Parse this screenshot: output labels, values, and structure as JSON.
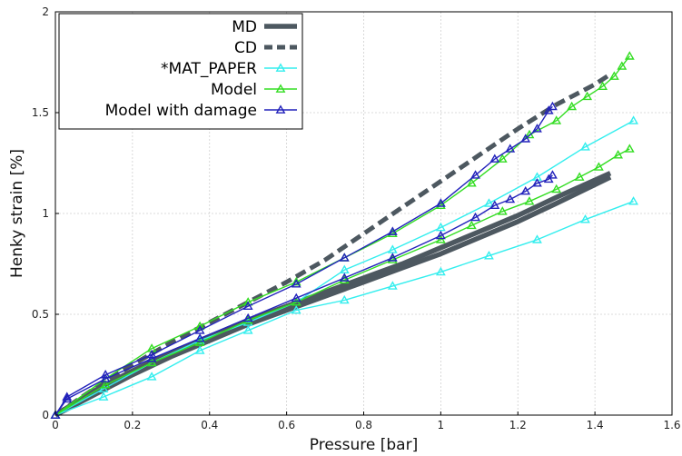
{
  "chart_data": {
    "type": "line",
    "title": "",
    "xlabel": "Pressure [bar]",
    "ylabel": "Henky strain [%]",
    "xlim": [
      0,
      1.6
    ],
    "ylim": [
      0,
      2
    ],
    "xticks": [
      "0",
      "0.2",
      "0.4",
      "0.6",
      "0.8",
      "1",
      "1.2",
      "1.4",
      "1.6"
    ],
    "yticks": [
      "0",
      "0.5",
      "1",
      "1.5",
      "2"
    ],
    "grid": true,
    "legend_position": "top-left",
    "series": [
      {
        "id": "md",
        "name": "MD",
        "color": "#4d5860",
        "style": "solid-thick",
        "marker": "none",
        "lines": [
          [
            [
              0,
              0
            ],
            [
              0.1,
              0.1
            ],
            [
              0.2,
              0.2
            ],
            [
              0.3,
              0.29
            ],
            [
              0.4,
              0.37
            ],
            [
              0.5,
              0.45
            ],
            [
              0.6,
              0.52
            ],
            [
              0.7,
              0.59
            ],
            [
              0.8,
              0.66
            ],
            [
              0.9,
              0.73
            ],
            [
              1.0,
              0.8
            ],
            [
              1.1,
              0.88
            ],
            [
              1.2,
              0.96
            ],
            [
              1.3,
              1.05
            ],
            [
              1.44,
              1.18
            ]
          ],
          [
            [
              0,
              0
            ],
            [
              0.1,
              0.12
            ],
            [
              0.2,
              0.22
            ],
            [
              0.3,
              0.31
            ],
            [
              0.4,
              0.39
            ],
            [
              0.5,
              0.47
            ],
            [
              0.6,
              0.54
            ],
            [
              0.7,
              0.61
            ],
            [
              0.8,
              0.68
            ],
            [
              0.9,
              0.75
            ],
            [
              1.0,
              0.83
            ],
            [
              1.1,
              0.91
            ],
            [
              1.2,
              0.99
            ],
            [
              1.3,
              1.08
            ],
            [
              1.44,
              1.2
            ]
          ]
        ]
      },
      {
        "id": "cd",
        "name": "CD",
        "color": "#4d5860",
        "style": "dashed-thick",
        "marker": "none",
        "lines": [
          [
            [
              0,
              0
            ],
            [
              0.1,
              0.13
            ],
            [
              0.2,
              0.25
            ],
            [
              0.3,
              0.36
            ],
            [
              0.4,
              0.46
            ],
            [
              0.5,
              0.56
            ],
            [
              0.6,
              0.66
            ],
            [
              0.7,
              0.77
            ],
            [
              0.8,
              0.9
            ],
            [
              0.9,
              1.03
            ],
            [
              1.0,
              1.16
            ],
            [
              1.1,
              1.29
            ],
            [
              1.2,
              1.42
            ],
            [
              1.3,
              1.54
            ],
            [
              1.4,
              1.64
            ],
            [
              1.44,
              1.69
            ]
          ]
        ]
      },
      {
        "id": "mat_paper",
        "name": "*MAT_PAPER",
        "color": "#33eeee",
        "style": "solid",
        "marker": "triangle",
        "lines": [
          [
            [
              0,
              0
            ],
            [
              0.125,
              0.09
            ],
            [
              0.25,
              0.19
            ],
            [
              0.375,
              0.32
            ],
            [
              0.5,
              0.42
            ],
            [
              0.625,
              0.52
            ],
            [
              0.75,
              0.57
            ],
            [
              0.875,
              0.64
            ],
            [
              1.0,
              0.71
            ],
            [
              1.125,
              0.79
            ],
            [
              1.25,
              0.87
            ],
            [
              1.375,
              0.97
            ],
            [
              1.5,
              1.06
            ]
          ],
          [
            [
              0,
              0
            ],
            [
              0.125,
              0.13
            ],
            [
              0.25,
              0.26
            ],
            [
              0.375,
              0.37
            ],
            [
              0.5,
              0.46
            ],
            [
              0.625,
              0.56
            ],
            [
              0.75,
              0.72
            ],
            [
              0.875,
              0.82
            ],
            [
              1.0,
              0.93
            ],
            [
              1.125,
              1.05
            ],
            [
              1.25,
              1.18
            ],
            [
              1.375,
              1.33
            ],
            [
              1.5,
              1.46
            ]
          ]
        ]
      },
      {
        "id": "model",
        "name": "Model",
        "color": "#33dd22",
        "style": "solid",
        "marker": "triangle",
        "lines": [
          [
            [
              0,
              0
            ],
            [
              0.13,
              0.15
            ],
            [
              0.25,
              0.26
            ],
            [
              0.375,
              0.36
            ],
            [
              0.5,
              0.47
            ],
            [
              0.625,
              0.56
            ],
            [
              0.75,
              0.67
            ],
            [
              0.875,
              0.77
            ],
            [
              1.0,
              0.87
            ],
            [
              1.08,
              0.94
            ],
            [
              1.16,
              1.01
            ],
            [
              1.23,
              1.06
            ],
            [
              1.3,
              1.12
            ],
            [
              1.36,
              1.18
            ],
            [
              1.41,
              1.23
            ],
            [
              1.46,
              1.29
            ],
            [
              1.49,
              1.32
            ]
          ],
          [
            [
              0,
              0
            ],
            [
              0.13,
              0.18
            ],
            [
              0.25,
              0.33
            ],
            [
              0.375,
              0.44
            ],
            [
              0.5,
              0.56
            ],
            [
              0.625,
              0.66
            ],
            [
              0.75,
              0.78
            ],
            [
              0.875,
              0.9
            ],
            [
              1.0,
              1.04
            ],
            [
              1.08,
              1.15
            ],
            [
              1.16,
              1.27
            ],
            [
              1.23,
              1.39
            ],
            [
              1.3,
              1.46
            ],
            [
              1.34,
              1.53
            ],
            [
              1.38,
              1.58
            ],
            [
              1.42,
              1.63
            ],
            [
              1.45,
              1.68
            ],
            [
              1.47,
              1.73
            ],
            [
              1.49,
              1.78
            ]
          ]
        ]
      },
      {
        "id": "model_damage",
        "name": "Model with damage",
        "color": "#2222bb",
        "style": "solid",
        "marker": "triangle",
        "lines": [
          [
            [
              0,
              0
            ],
            [
              0.03,
              0.08
            ],
            [
              0.13,
              0.18
            ],
            [
              0.25,
              0.28
            ],
            [
              0.375,
              0.38
            ],
            [
              0.5,
              0.48
            ],
            [
              0.625,
              0.58
            ],
            [
              0.75,
              0.68
            ],
            [
              0.875,
              0.78
            ],
            [
              1.0,
              0.89
            ],
            [
              1.09,
              0.98
            ],
            [
              1.14,
              1.04
            ],
            [
              1.18,
              1.07
            ],
            [
              1.22,
              1.11
            ],
            [
              1.25,
              1.15
            ],
            [
              1.28,
              1.17
            ],
            [
              1.29,
              1.19
            ]
          ],
          [
            [
              0,
              0
            ],
            [
              0.03,
              0.09
            ],
            [
              0.13,
              0.2
            ],
            [
              0.25,
              0.3
            ],
            [
              0.375,
              0.42
            ],
            [
              0.5,
              0.54
            ],
            [
              0.625,
              0.65
            ],
            [
              0.75,
              0.78
            ],
            [
              0.875,
              0.91
            ],
            [
              1.0,
              1.05
            ],
            [
              1.09,
              1.19
            ],
            [
              1.14,
              1.27
            ],
            [
              1.18,
              1.32
            ],
            [
              1.22,
              1.37
            ],
            [
              1.25,
              1.42
            ],
            [
              1.28,
              1.51
            ],
            [
              1.29,
              1.53
            ]
          ]
        ]
      }
    ]
  }
}
